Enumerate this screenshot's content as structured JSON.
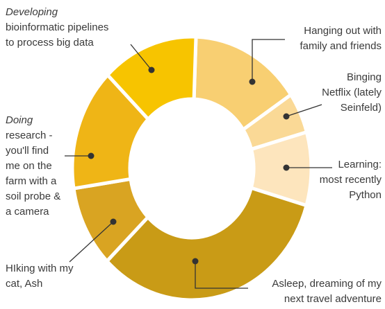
{
  "chart_data": {
    "type": "donut",
    "categories": [
      [
        "Hanging out with",
        "family and friends"
      ],
      [
        "Binging",
        "Netflix (lately",
        "Seinfeld)"
      ],
      [
        "Learning:",
        "most recently",
        "Python"
      ],
      [
        "Asleep, dreaming of my",
        "next travel adventure"
      ],
      [
        "HIking with my",
        "cat, Ash"
      ],
      [
        "Doing",
        "research -",
        "you'll find",
        "me on the",
        "farm with a",
        "soil probe &",
        "a camera"
      ],
      [
        "Developing",
        "bioinformatic pipelines",
        "to process big data"
      ]
    ],
    "italic_first_line": [
      false,
      false,
      false,
      false,
      false,
      true,
      true
    ],
    "values": [
      15,
      5,
      9,
      33,
      10,
      15,
      13
    ],
    "colors": [
      "#f8cf72",
      "#fad996",
      "#fde5bd",
      "#c99b16",
      "#d9a422",
      "#efb516",
      "#f7c400"
    ]
  }
}
